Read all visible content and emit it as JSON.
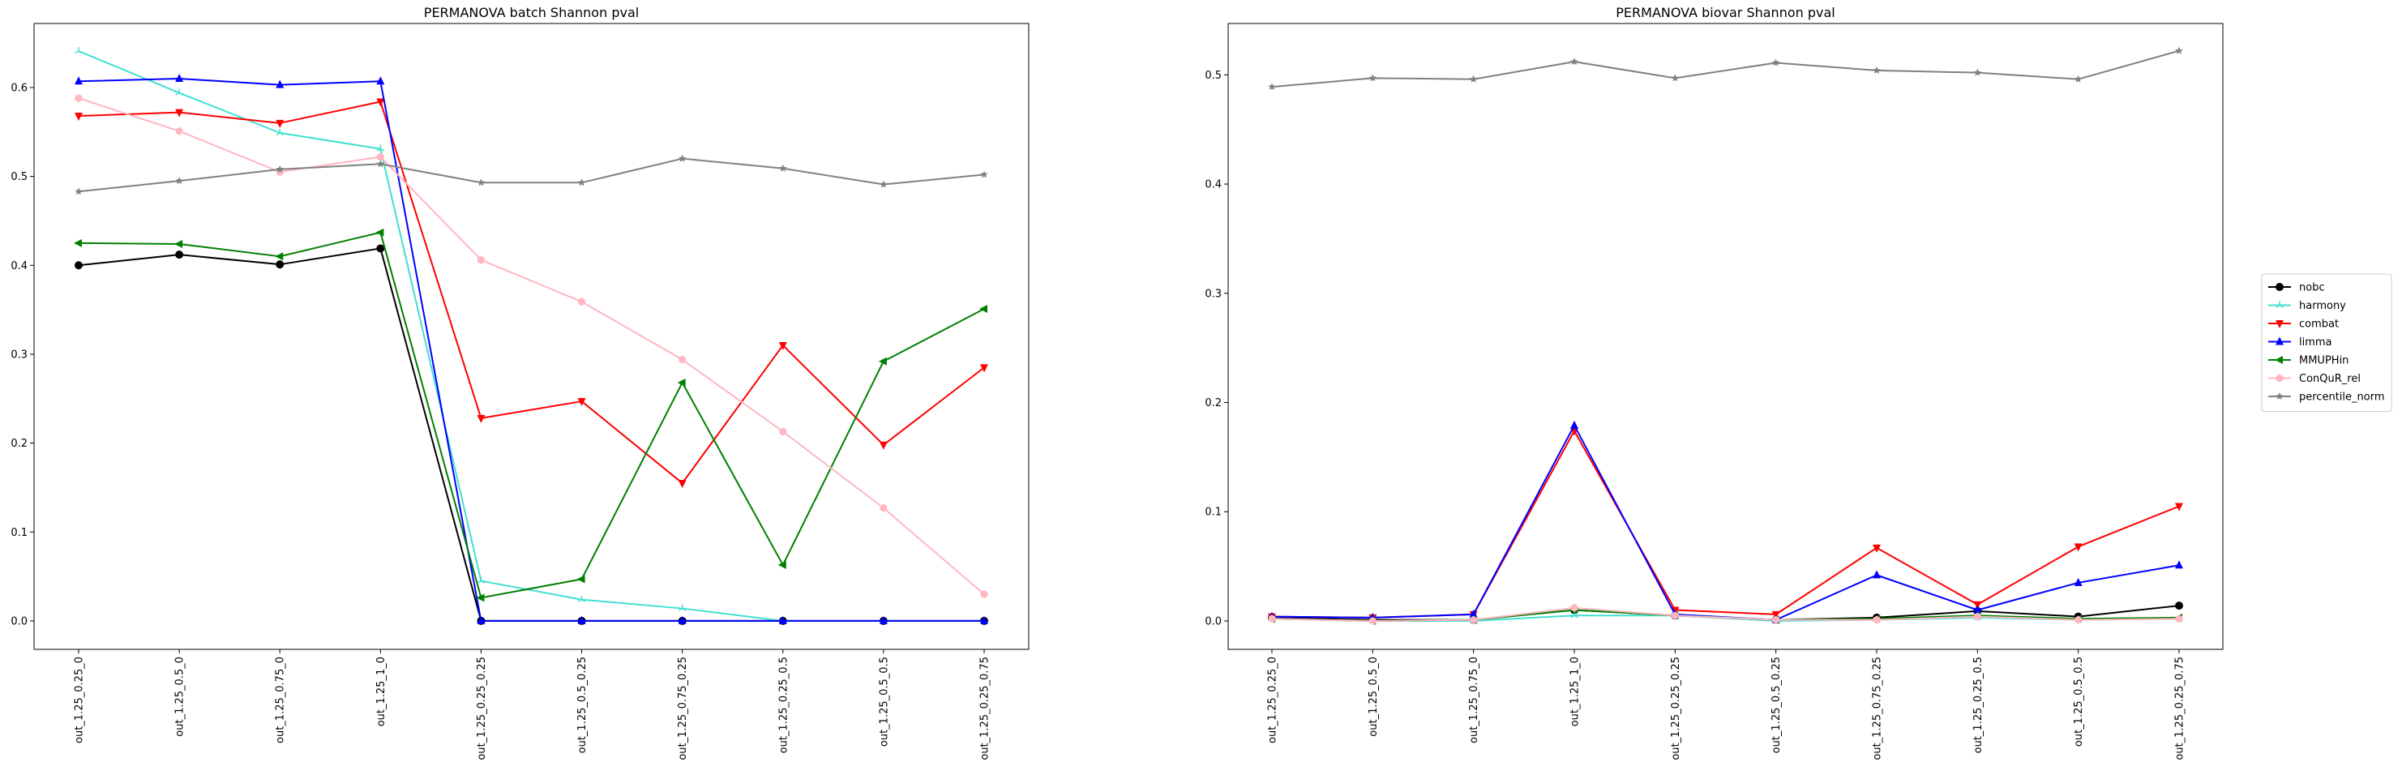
{
  "chart_data": [
    {
      "type": "line",
      "title": "PERMANOVA batch Shannon pval",
      "xlabel": "",
      "ylabel": "",
      "categories": [
        "out_1.25_0.25_0",
        "out_1.25_0.5_0",
        "out_1.25_0.75_0",
        "out_1.25_1_0",
        "out_1.25_0.25_0.25",
        "out_1.25_0.5_0.25",
        "out_1.25_0.75_0.25",
        "out_1.25_0.25_0.5",
        "out_1.25_0.5_0.5",
        "out_1.25_0.25_0.75"
      ],
      "ylim": [
        -0.032,
        0.672
      ],
      "yticks": [
        0.0,
        0.1,
        0.2,
        0.3,
        0.4,
        0.5,
        0.6
      ],
      "ytick_labels": [
        "0.0",
        "0.1",
        "0.2",
        "0.3",
        "0.4",
        "0.5",
        "0.6"
      ],
      "grid": false,
      "series": [
        {
          "name": "nobc",
          "color": "#000000",
          "marker": "circle",
          "values": [
            0.4,
            0.412,
            0.401,
            0.419,
            0.0,
            0.0,
            0.0,
            0.0,
            0.0,
            0.0
          ]
        },
        {
          "name": "harmony",
          "color": "#40e0d0",
          "marker": "tri_up",
          "values": [
            0.641,
            0.594,
            0.549,
            0.531,
            0.045,
            0.024,
            0.014,
            0.0,
            0.0,
            0.0
          ]
        },
        {
          "name": "combat",
          "color": "#ff0000",
          "marker": "triangle_down",
          "values": [
            0.568,
            0.572,
            0.56,
            0.584,
            0.228,
            0.247,
            0.155,
            0.31,
            0.198,
            0.285
          ]
        },
        {
          "name": "limma",
          "color": "#0000ff",
          "marker": "triangle_up",
          "values": [
            0.607,
            0.61,
            0.603,
            0.607,
            0.0,
            0.0,
            0.0,
            0.0,
            0.0,
            0.0
          ]
        },
        {
          "name": "MMUPHin",
          "color": "#008000",
          "marker": "triangle_left",
          "values": [
            0.425,
            0.424,
            0.41,
            0.437,
            0.026,
            0.047,
            0.268,
            0.063,
            0.292,
            0.351
          ]
        },
        {
          "name": "ConQuR_rel",
          "color": "#ffb6c1",
          "marker": "hexagon",
          "values": [
            0.588,
            0.551,
            0.505,
            0.522,
            0.406,
            0.359,
            0.294,
            0.213,
            0.127,
            0.03
          ]
        },
        {
          "name": "percentile_norm",
          "color": "#808080",
          "marker": "star",
          "values": [
            0.483,
            0.495,
            0.508,
            0.514,
            0.493,
            0.493,
            0.52,
            0.509,
            0.491,
            0.502
          ]
        }
      ]
    },
    {
      "type": "line",
      "title": "PERMANOVA biovar Shannon pval",
      "xlabel": "",
      "ylabel": "",
      "categories": [
        "out_1.25_0.25_0",
        "out_1.25_0.5_0",
        "out_1.25_0.75_0",
        "out_1.25_1_0",
        "out_1.25_0.25_0.25",
        "out_1.25_0.5_0.25",
        "out_1.25_0.75_0.25",
        "out_1.25_0.25_0.5",
        "out_1.25_0.5_0.5",
        "out_1.25_0.25_0.75"
      ],
      "ylim": [
        -0.026,
        0.547
      ],
      "yticks": [
        0.0,
        0.1,
        0.2,
        0.3,
        0.4,
        0.5
      ],
      "ytick_labels": [
        "0.0",
        "0.1",
        "0.2",
        "0.3",
        "0.4",
        "0.5"
      ],
      "grid": false,
      "series": [
        {
          "name": "nobc",
          "color": "#000000",
          "marker": "circle",
          "values": [
            0.003,
            0.001,
            0.001,
            0.01,
            0.005,
            0.001,
            0.003,
            0.009,
            0.004,
            0.014
          ]
        },
        {
          "name": "harmony",
          "color": "#40e0d0",
          "marker": "tri_up",
          "values": [
            0.002,
            0.0,
            0.0,
            0.005,
            0.005,
            0.0,
            0.001,
            0.003,
            0.001,
            0.002
          ]
        },
        {
          "name": "combat",
          "color": "#ff0000",
          "marker": "triangle_down",
          "values": [
            0.004,
            0.003,
            0.006,
            0.174,
            0.01,
            0.006,
            0.067,
            0.015,
            0.068,
            0.105
          ]
        },
        {
          "name": "limma",
          "color": "#0000ff",
          "marker": "triangle_up",
          "values": [
            0.004,
            0.003,
            0.006,
            0.179,
            0.006,
            0.001,
            0.042,
            0.01,
            0.035,
            0.051
          ]
        },
        {
          "name": "MMUPHin",
          "color": "#008000",
          "marker": "triangle_left",
          "values": [
            0.002,
            0.0,
            0.001,
            0.01,
            0.005,
            0.001,
            0.002,
            0.005,
            0.002,
            0.003
          ]
        },
        {
          "name": "ConQuR_rel",
          "color": "#ffb6c1",
          "marker": "hexagon",
          "values": [
            0.002,
            0.0,
            0.001,
            0.012,
            0.005,
            0.001,
            0.001,
            0.004,
            0.001,
            0.002
          ]
        },
        {
          "name": "percentile_norm",
          "color": "#808080",
          "marker": "star",
          "values": [
            0.489,
            0.497,
            0.496,
            0.512,
            0.497,
            0.511,
            0.504,
            0.502,
            0.496,
            0.522
          ]
        }
      ]
    }
  ],
  "legend": {
    "placement": "right",
    "entries": [
      "nobc",
      "harmony",
      "combat",
      "limma",
      "MMUPHin",
      "ConQuR_rel",
      "percentile_norm"
    ]
  }
}
